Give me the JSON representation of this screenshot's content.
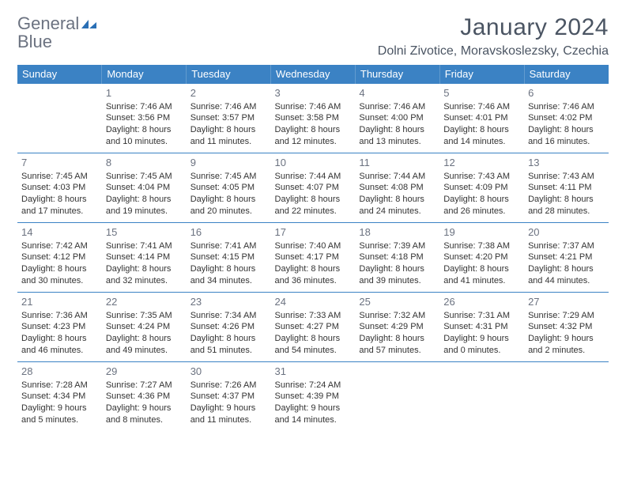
{
  "colors": {
    "header_bg": "#3b82c4",
    "header_text": "#ffffff",
    "border": "#3b82c4",
    "daynum": "#6b7280",
    "body_text": "#333333",
    "title_text": "#4b5563",
    "logo_gray": "#6b7280",
    "logo_blue": "#2a6fb5",
    "background": "#ffffff"
  },
  "logo": {
    "line1": "General",
    "line2": "Blue"
  },
  "title": "January 2024",
  "location": "Dolni Zivotice, Moravskoslezsky, Czechia",
  "weekdays": [
    "Sunday",
    "Monday",
    "Tuesday",
    "Wednesday",
    "Thursday",
    "Friday",
    "Saturday"
  ],
  "weeks": [
    [
      null,
      {
        "n": "1",
        "sr": "Sunrise: 7:46 AM",
        "ss": "Sunset: 3:56 PM",
        "d1": "Daylight: 8 hours",
        "d2": "and 10 minutes."
      },
      {
        "n": "2",
        "sr": "Sunrise: 7:46 AM",
        "ss": "Sunset: 3:57 PM",
        "d1": "Daylight: 8 hours",
        "d2": "and 11 minutes."
      },
      {
        "n": "3",
        "sr": "Sunrise: 7:46 AM",
        "ss": "Sunset: 3:58 PM",
        "d1": "Daylight: 8 hours",
        "d2": "and 12 minutes."
      },
      {
        "n": "4",
        "sr": "Sunrise: 7:46 AM",
        "ss": "Sunset: 4:00 PM",
        "d1": "Daylight: 8 hours",
        "d2": "and 13 minutes."
      },
      {
        "n": "5",
        "sr": "Sunrise: 7:46 AM",
        "ss": "Sunset: 4:01 PM",
        "d1": "Daylight: 8 hours",
        "d2": "and 14 minutes."
      },
      {
        "n": "6",
        "sr": "Sunrise: 7:46 AM",
        "ss": "Sunset: 4:02 PM",
        "d1": "Daylight: 8 hours",
        "d2": "and 16 minutes."
      }
    ],
    [
      {
        "n": "7",
        "sr": "Sunrise: 7:45 AM",
        "ss": "Sunset: 4:03 PM",
        "d1": "Daylight: 8 hours",
        "d2": "and 17 minutes."
      },
      {
        "n": "8",
        "sr": "Sunrise: 7:45 AM",
        "ss": "Sunset: 4:04 PM",
        "d1": "Daylight: 8 hours",
        "d2": "and 19 minutes."
      },
      {
        "n": "9",
        "sr": "Sunrise: 7:45 AM",
        "ss": "Sunset: 4:05 PM",
        "d1": "Daylight: 8 hours",
        "d2": "and 20 minutes."
      },
      {
        "n": "10",
        "sr": "Sunrise: 7:44 AM",
        "ss": "Sunset: 4:07 PM",
        "d1": "Daylight: 8 hours",
        "d2": "and 22 minutes."
      },
      {
        "n": "11",
        "sr": "Sunrise: 7:44 AM",
        "ss": "Sunset: 4:08 PM",
        "d1": "Daylight: 8 hours",
        "d2": "and 24 minutes."
      },
      {
        "n": "12",
        "sr": "Sunrise: 7:43 AM",
        "ss": "Sunset: 4:09 PM",
        "d1": "Daylight: 8 hours",
        "d2": "and 26 minutes."
      },
      {
        "n": "13",
        "sr": "Sunrise: 7:43 AM",
        "ss": "Sunset: 4:11 PM",
        "d1": "Daylight: 8 hours",
        "d2": "and 28 minutes."
      }
    ],
    [
      {
        "n": "14",
        "sr": "Sunrise: 7:42 AM",
        "ss": "Sunset: 4:12 PM",
        "d1": "Daylight: 8 hours",
        "d2": "and 30 minutes."
      },
      {
        "n": "15",
        "sr": "Sunrise: 7:41 AM",
        "ss": "Sunset: 4:14 PM",
        "d1": "Daylight: 8 hours",
        "d2": "and 32 minutes."
      },
      {
        "n": "16",
        "sr": "Sunrise: 7:41 AM",
        "ss": "Sunset: 4:15 PM",
        "d1": "Daylight: 8 hours",
        "d2": "and 34 minutes."
      },
      {
        "n": "17",
        "sr": "Sunrise: 7:40 AM",
        "ss": "Sunset: 4:17 PM",
        "d1": "Daylight: 8 hours",
        "d2": "and 36 minutes."
      },
      {
        "n": "18",
        "sr": "Sunrise: 7:39 AM",
        "ss": "Sunset: 4:18 PM",
        "d1": "Daylight: 8 hours",
        "d2": "and 39 minutes."
      },
      {
        "n": "19",
        "sr": "Sunrise: 7:38 AM",
        "ss": "Sunset: 4:20 PM",
        "d1": "Daylight: 8 hours",
        "d2": "and 41 minutes."
      },
      {
        "n": "20",
        "sr": "Sunrise: 7:37 AM",
        "ss": "Sunset: 4:21 PM",
        "d1": "Daylight: 8 hours",
        "d2": "and 44 minutes."
      }
    ],
    [
      {
        "n": "21",
        "sr": "Sunrise: 7:36 AM",
        "ss": "Sunset: 4:23 PM",
        "d1": "Daylight: 8 hours",
        "d2": "and 46 minutes."
      },
      {
        "n": "22",
        "sr": "Sunrise: 7:35 AM",
        "ss": "Sunset: 4:24 PM",
        "d1": "Daylight: 8 hours",
        "d2": "and 49 minutes."
      },
      {
        "n": "23",
        "sr": "Sunrise: 7:34 AM",
        "ss": "Sunset: 4:26 PM",
        "d1": "Daylight: 8 hours",
        "d2": "and 51 minutes."
      },
      {
        "n": "24",
        "sr": "Sunrise: 7:33 AM",
        "ss": "Sunset: 4:27 PM",
        "d1": "Daylight: 8 hours",
        "d2": "and 54 minutes."
      },
      {
        "n": "25",
        "sr": "Sunrise: 7:32 AM",
        "ss": "Sunset: 4:29 PM",
        "d1": "Daylight: 8 hours",
        "d2": "and 57 minutes."
      },
      {
        "n": "26",
        "sr": "Sunrise: 7:31 AM",
        "ss": "Sunset: 4:31 PM",
        "d1": "Daylight: 9 hours",
        "d2": "and 0 minutes."
      },
      {
        "n": "27",
        "sr": "Sunrise: 7:29 AM",
        "ss": "Sunset: 4:32 PM",
        "d1": "Daylight: 9 hours",
        "d2": "and 2 minutes."
      }
    ],
    [
      {
        "n": "28",
        "sr": "Sunrise: 7:28 AM",
        "ss": "Sunset: 4:34 PM",
        "d1": "Daylight: 9 hours",
        "d2": "and 5 minutes."
      },
      {
        "n": "29",
        "sr": "Sunrise: 7:27 AM",
        "ss": "Sunset: 4:36 PM",
        "d1": "Daylight: 9 hours",
        "d2": "and 8 minutes."
      },
      {
        "n": "30",
        "sr": "Sunrise: 7:26 AM",
        "ss": "Sunset: 4:37 PM",
        "d1": "Daylight: 9 hours",
        "d2": "and 11 minutes."
      },
      {
        "n": "31",
        "sr": "Sunrise: 7:24 AM",
        "ss": "Sunset: 4:39 PM",
        "d1": "Daylight: 9 hours",
        "d2": "and 14 minutes."
      },
      null,
      null,
      null
    ]
  ]
}
